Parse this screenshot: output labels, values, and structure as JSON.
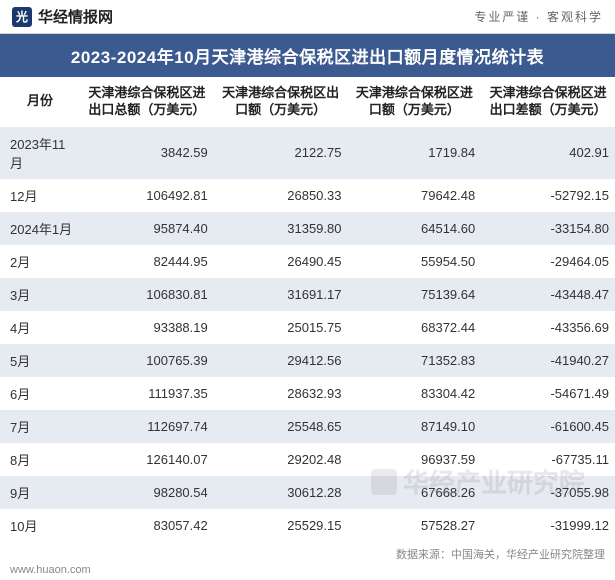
{
  "header": {
    "logo_glyph": "光",
    "logo_text": "华经情报网",
    "tagline": "专业严谨 · 客观科学"
  },
  "title": "2023-2024年10月天津港综合保税区进出口额月度情况统计表",
  "columns": [
    "月份",
    "天津港综合保税区进出口总额（万美元）",
    "天津港综合保税区出口额（万美元）",
    "天津港综合保税区进口额（万美元）",
    "天津港综合保税区进出口差额（万美元）"
  ],
  "rows": [
    [
      "2023年11月",
      "3842.59",
      "2122.75",
      "1719.84",
      "402.91"
    ],
    [
      "12月",
      "106492.81",
      "26850.33",
      "79642.48",
      "-52792.15"
    ],
    [
      "2024年1月",
      "95874.40",
      "31359.80",
      "64514.60",
      "-33154.80"
    ],
    [
      "2月",
      "82444.95",
      "26490.45",
      "55954.50",
      "-29464.05"
    ],
    [
      "3月",
      "106830.81",
      "31691.17",
      "75139.64",
      "-43448.47"
    ],
    [
      "4月",
      "93388.19",
      "25015.75",
      "68372.44",
      "-43356.69"
    ],
    [
      "5月",
      "100765.39",
      "29412.56",
      "71352.83",
      "-41940.27"
    ],
    [
      "6月",
      "111937.35",
      "28632.93",
      "83304.42",
      "-54671.49"
    ],
    [
      "7月",
      "112697.74",
      "25548.65",
      "87149.10",
      "-61600.45"
    ],
    [
      "8月",
      "126140.07",
      "29202.48",
      "96937.59",
      "-67735.11"
    ],
    [
      "9月",
      "98280.54",
      "30612.28",
      "67668.26",
      "-37055.98"
    ],
    [
      "10月",
      "83057.42",
      "25529.15",
      "57528.27",
      "-31999.12"
    ]
  ],
  "source": "数据来源：中国海关，华经产业研究院整理",
  "footer_url": "www.huaon.com",
  "watermark": "华经产业研究院",
  "style": {
    "title_bg": "#3b5a8f",
    "title_fg": "#ffffff",
    "row_odd_bg": "#e6eaf1",
    "row_even_bg": "#ffffff",
    "text_color": "#333333"
  }
}
